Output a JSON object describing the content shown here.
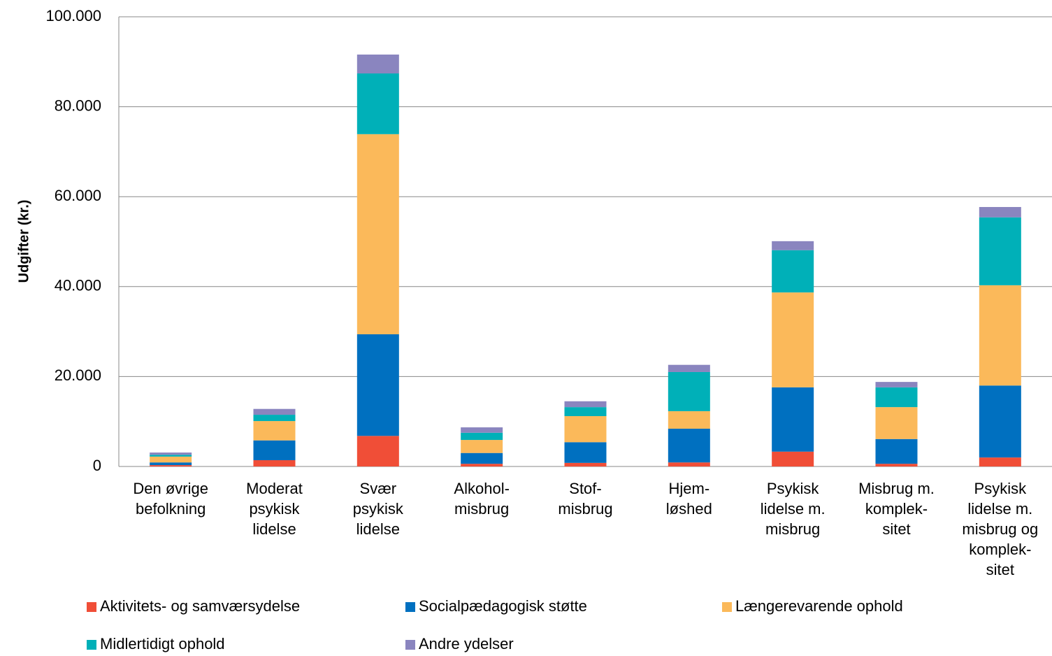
{
  "chart_data": {
    "type": "stacked_bar",
    "y_label": "Udgifter (kr.)",
    "categories": [
      [
        "Den øvrige",
        "befolkning"
      ],
      [
        "Moderat",
        "psykisk",
        "lidelse"
      ],
      [
        "Svær",
        "psykisk",
        "lidelse"
      ],
      [
        "Alkohol-",
        "misbrug"
      ],
      [
        "Stof-",
        "misbrug"
      ],
      [
        "Hjem-",
        "løshed"
      ],
      [
        "Psykisk",
        "lidelse m.",
        "misbrug"
      ],
      [
        "Misbrug m.",
        "komplek-",
        "sitet"
      ],
      [
        "Psykisk",
        "lidelse m.",
        "misbrug og",
        "komplek-",
        "sitet"
      ]
    ],
    "series": [
      {
        "name": "Aktivitets- og samværsydelse",
        "color": "#f04e37",
        "values": [
          300,
          1400,
          6800,
          600,
          800,
          900,
          3300,
          600,
          2000
        ]
      },
      {
        "name": "Socialpædagogisk støtte",
        "color": "#0070c0",
        "values": [
          600,
          4400,
          22600,
          2400,
          4600,
          7500,
          14300,
          5500,
          16000
        ]
      },
      {
        "name": "Længerevarende ophold",
        "color": "#fbb95a",
        "values": [
          1300,
          4300,
          44500,
          2900,
          5800,
          3900,
          21100,
          7100,
          22300
        ]
      },
      {
        "name": "Midlertidigt ophold",
        "color": "#00b0b8",
        "values": [
          400,
          1400,
          13500,
          1600,
          2000,
          8700,
          9400,
          4400,
          15100
        ]
      },
      {
        "name": "Andre ydelser",
        "color": "#8a85bf",
        "values": [
          500,
          1300,
          4200,
          1200,
          1300,
          1600,
          2000,
          1200,
          2300
        ]
      }
    ],
    "ylim": [
      0,
      100000
    ],
    "yticks": [
      0,
      {
        "value": 20000,
        "label": "20.000"
      },
      {
        "value": 40000,
        "label": "40.000"
      },
      {
        "value": 60000,
        "label": "60.000"
      },
      {
        "value": 80000,
        "label": "80.000"
      },
      {
        "value": 100000,
        "label": "100.000"
      }
    ],
    "grid": true,
    "legend": "bottom"
  }
}
